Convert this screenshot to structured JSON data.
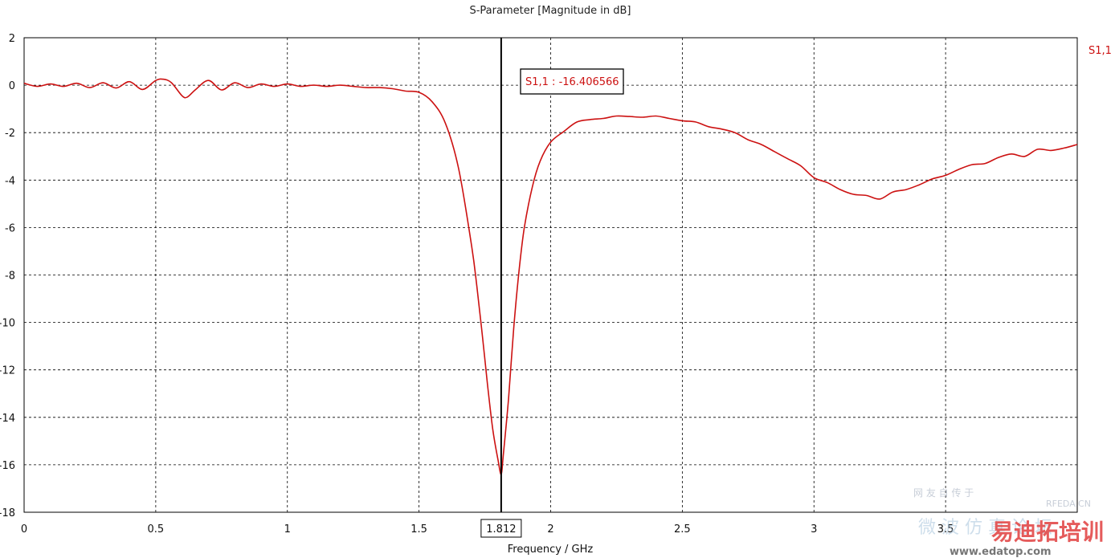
{
  "chart_data": {
    "type": "line",
    "title": "S-Parameter [Magnitude in dB]",
    "xlabel": "Frequency / GHz",
    "ylabel": "",
    "xlim": [
      0,
      4
    ],
    "ylim": [
      -18,
      2
    ],
    "x_ticks": [
      0,
      0.5,
      1,
      1.5,
      2,
      2.5,
      3,
      3.5
    ],
    "x_tick_labels": [
      "0",
      "0.5",
      "1",
      "1.5",
      "2",
      "2.5",
      "3",
      "3.5"
    ],
    "y_ticks": [
      2,
      0,
      -2,
      -4,
      -6,
      -8,
      -10,
      -12,
      -14,
      -16,
      -18
    ],
    "y_tick_labels": [
      "2",
      "0",
      "-2",
      "-4",
      "-6",
      "-8",
      "-10",
      "-12",
      "-14",
      "-16",
      "-18"
    ],
    "grid": true,
    "legend_position": "top-right",
    "series": [
      {
        "name": "S1,1",
        "color": "#cc1111",
        "x": [
          0,
          0.05,
          0.1,
          0.15,
          0.2,
          0.25,
          0.3,
          0.35,
          0.4,
          0.45,
          0.5,
          0.53,
          0.56,
          0.6,
          0.62,
          0.65,
          0.7,
          0.75,
          0.8,
          0.85,
          0.9,
          0.95,
          1.0,
          1.05,
          1.1,
          1.15,
          1.2,
          1.25,
          1.3,
          1.35,
          1.4,
          1.45,
          1.5,
          1.55,
          1.6,
          1.65,
          1.7,
          1.72,
          1.74,
          1.76,
          1.78,
          1.8,
          1.812,
          1.82,
          1.84,
          1.86,
          1.88,
          1.9,
          1.93,
          1.96,
          2.0,
          2.05,
          2.1,
          2.15,
          2.2,
          2.25,
          2.3,
          2.35,
          2.4,
          2.45,
          2.5,
          2.55,
          2.6,
          2.65,
          2.7,
          2.75,
          2.8,
          2.85,
          2.9,
          2.95,
          3.0,
          3.05,
          3.1,
          3.15,
          3.2,
          3.25,
          3.3,
          3.35,
          3.4,
          3.45,
          3.5,
          3.55,
          3.6,
          3.65,
          3.7,
          3.75,
          3.8,
          3.85,
          3.9,
          3.95,
          4.0
        ],
        "values": [
          0.08,
          -0.05,
          0.05,
          -0.05,
          0.08,
          -0.1,
          0.1,
          -0.12,
          0.15,
          -0.18,
          0.2,
          0.25,
          0.1,
          -0.45,
          -0.5,
          -0.2,
          0.2,
          -0.2,
          0.1,
          -0.1,
          0.05,
          -0.05,
          0.05,
          -0.05,
          0.0,
          -0.05,
          0.0,
          -0.05,
          -0.1,
          -0.1,
          -0.15,
          -0.25,
          -0.3,
          -0.7,
          -1.6,
          -3.5,
          -6.8,
          -8.5,
          -10.5,
          -12.6,
          -14.5,
          -15.8,
          -16.4,
          -15.6,
          -13.2,
          -10.2,
          -7.8,
          -6.0,
          -4.3,
          -3.2,
          -2.4,
          -1.95,
          -1.55,
          -1.45,
          -1.4,
          -1.3,
          -1.32,
          -1.35,
          -1.3,
          -1.4,
          -1.5,
          -1.55,
          -1.75,
          -1.85,
          -2.0,
          -2.3,
          -2.5,
          -2.8,
          -3.1,
          -3.4,
          -3.9,
          -4.1,
          -4.4,
          -4.6,
          -4.65,
          -4.8,
          -4.5,
          -4.4,
          -4.2,
          -3.95,
          -3.8,
          -3.55,
          -3.35,
          -3.3,
          -3.05,
          -2.9,
          -3.0,
          -2.7,
          -2.75,
          -2.65,
          -2.5
        ]
      }
    ],
    "marker": {
      "x": 1.812,
      "x_label": "1.812",
      "readout": "S1,1 : -16.406566"
    },
    "watermark": {
      "left_lines": [
        "网 友 自 传 于",
        "微 波 仿 真 论 坛"
      ],
      "site": "RFEDA.CN",
      "brand": "易迪拓培训",
      "url": "www.edatop.com"
    }
  }
}
